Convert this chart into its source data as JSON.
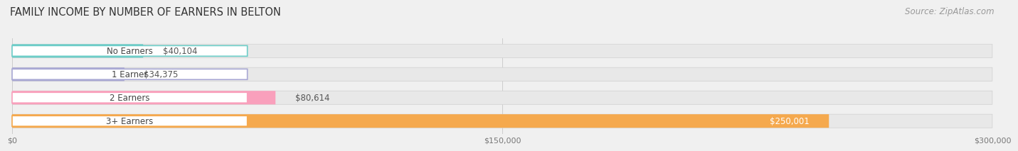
{
  "title": "FAMILY INCOME BY NUMBER OF EARNERS IN BELTON",
  "source": "Source: ZipAtlas.com",
  "categories": [
    "No Earners",
    "1 Earner",
    "2 Earners",
    "3+ Earners"
  ],
  "values": [
    40104,
    34375,
    80614,
    250001
  ],
  "bar_colors": [
    "#6dcdc8",
    "#a9a8d4",
    "#f9a0bc",
    "#f5a94e"
  ],
  "label_colors": [
    "#6dcdc8",
    "#a9a8d4",
    "#f9a0bc",
    "#f5a94e"
  ],
  "value_labels": [
    "$40,104",
    "$34,375",
    "$80,614",
    "$250,001"
  ],
  "xlim": [
    0,
    300000
  ],
  "xticks": [
    0,
    150000,
    300000
  ],
  "xtick_labels": [
    "$0",
    "$150,000",
    "$300,000"
  ],
  "background_color": "#f0f0f0",
  "bar_background_color": "#e8e8e8",
  "title_fontsize": 10.5,
  "source_fontsize": 8.5,
  "label_fontsize": 8.5,
  "value_fontsize": 8.5
}
